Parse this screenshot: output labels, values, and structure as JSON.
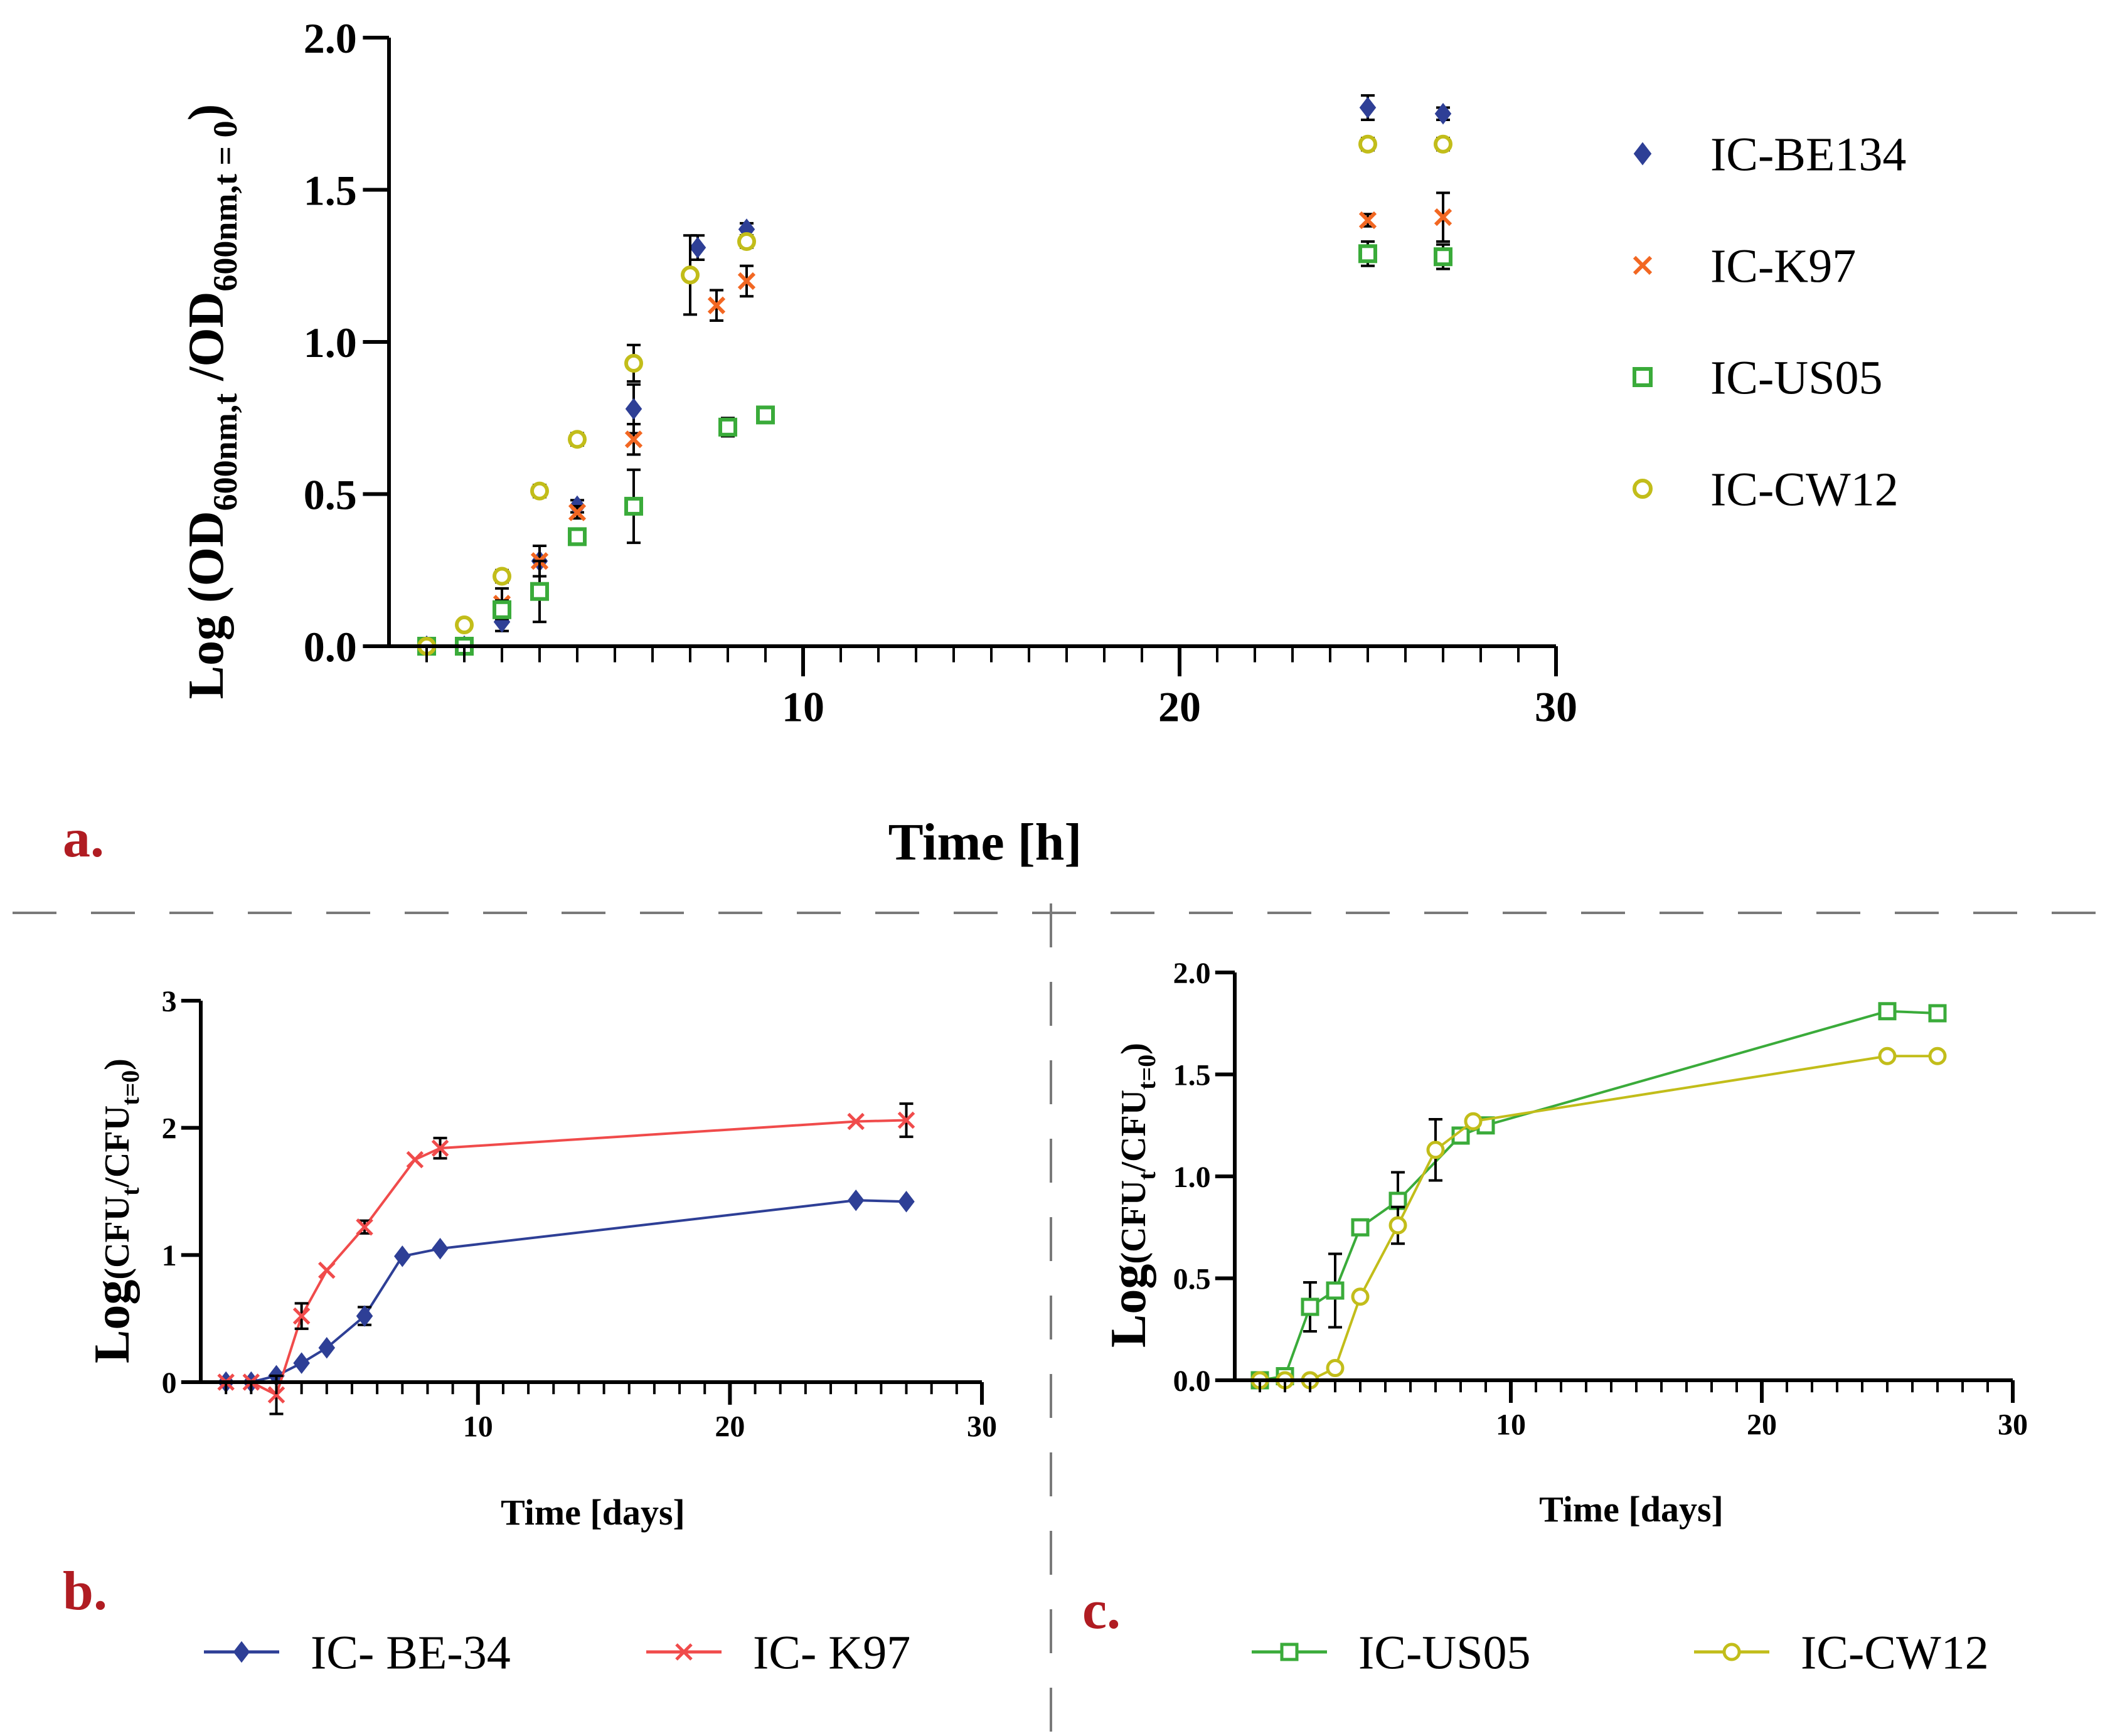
{
  "colors": {
    "blue": "#2e3f96",
    "orange": "#f26722",
    "green": "#3aab3a",
    "yellow": "#c2bd1a",
    "red": "#f04b4b",
    "panel_letter": "#b01c22",
    "axis": "#000000",
    "divider": "#7a7a7a"
  },
  "panel_labels": {
    "a": "a.",
    "b": "b.",
    "c": "c."
  },
  "chart_data": [
    {
      "id": "a",
      "type": "scatter",
      "title": "",
      "xlabel": "Time [h]",
      "ylabel": {
        "prefix": "Log (OD",
        "sub1": "600nm,t",
        "mid": " /OD",
        "sub2": "600nm,t = 0",
        "suffix": ")"
      },
      "xlim": [
        -1,
        30
      ],
      "ylim": [
        0,
        2.0
      ],
      "xticks": [
        10,
        20,
        30
      ],
      "yticks": [
        0.0,
        0.5,
        1.0,
        1.5,
        2.0
      ],
      "ytick_labels": [
        "0.0",
        "0.5",
        "1.0",
        "1.5",
        "2.0"
      ],
      "legend": [
        "IC-BE134",
        "IC-K97",
        "IC-US05",
        "IC-CW12"
      ],
      "series": [
        {
          "name": "IC-BE134",
          "marker": "diamond",
          "color": "blue",
          "x": [
            0,
            1,
            2,
            3,
            4,
            5.5,
            7.2,
            8.5,
            25,
            27
          ],
          "y": [
            0,
            0,
            0.08,
            0.28,
            0.46,
            0.78,
            1.31,
            1.37,
            1.77,
            1.75
          ],
          "err": [
            0,
            0,
            0.03,
            0.05,
            0.02,
            0.08,
            0.04,
            0.02,
            0.04,
            0.02
          ]
        },
        {
          "name": "IC-K97",
          "marker": "x",
          "color": "orange",
          "x": [
            0,
            1,
            2,
            3,
            4,
            5.5,
            7.7,
            8.5,
            25,
            27
          ],
          "y": [
            0,
            0,
            0.14,
            0.28,
            0.44,
            0.68,
            1.12,
            1.2,
            1.4,
            1.41
          ],
          "err": [
            0,
            0,
            0.05,
            0.05,
            0.02,
            0.05,
            0.05,
            0.05,
            0.02,
            0.08
          ]
        },
        {
          "name": "IC-US05",
          "marker": "square",
          "color": "green",
          "x": [
            0,
            1,
            2,
            3,
            4,
            5.5,
            8,
            9,
            25,
            27
          ],
          "y": [
            0,
            0,
            0.12,
            0.18,
            0.36,
            0.46,
            0.72,
            0.76,
            1.29,
            1.28
          ],
          "err": [
            0,
            0,
            0.03,
            0.1,
            0.02,
            0.12,
            0.03,
            0.02,
            0.04,
            0.04
          ]
        },
        {
          "name": "IC-CW12",
          "marker": "circle",
          "color": "yellow",
          "x": [
            0,
            1,
            2,
            3,
            4,
            5.5,
            7,
            8.5,
            25,
            27
          ],
          "y": [
            0,
            0.07,
            0.23,
            0.51,
            0.68,
            0.93,
            1.22,
            1.33,
            1.65,
            1.65
          ],
          "err": [
            0,
            0,
            0.02,
            0.02,
            0.02,
            0.06,
            0.13,
            0.02,
            0.02,
            0.02
          ]
        }
      ]
    },
    {
      "id": "b",
      "type": "line",
      "title": "",
      "xlabel": "Time [days]",
      "ylabel": {
        "prefix": "Log",
        "mid": "(CFU",
        "sub1": "t",
        "mid2": "/CFU",
        "sub2": "t=0",
        "suffix": ")"
      },
      "xlim": [
        -1,
        30
      ],
      "ylim": [
        0,
        3
      ],
      "xticks": [
        10,
        20,
        30
      ],
      "yticks": [
        0,
        1,
        2,
        3
      ],
      "ytick_labels": [
        "0",
        "1",
        "2",
        "3"
      ],
      "legend": [
        "IC- BE-34",
        "IC- K97"
      ],
      "series": [
        {
          "name": "IC- BE-34",
          "marker": "diamond",
          "color": "blue",
          "x": [
            0,
            1,
            2,
            3,
            4,
            5.5,
            7,
            8.5,
            25,
            27
          ],
          "y": [
            0,
            0,
            0.05,
            0.15,
            0.27,
            0.52,
            0.99,
            1.05,
            1.43,
            1.42
          ],
          "err": [
            0,
            0,
            0,
            0,
            0,
            0.07,
            0,
            0,
            0,
            0
          ]
        },
        {
          "name": "IC- K97",
          "marker": "x",
          "color": "red",
          "x": [
            0,
            1,
            2,
            3,
            4,
            5.5,
            7.5,
            8.5,
            25,
            27
          ],
          "y": [
            0,
            0,
            -0.1,
            0.52,
            0.88,
            1.22,
            1.75,
            1.84,
            2.05,
            2.06
          ],
          "err": [
            0,
            0,
            0.15,
            0.1,
            0,
            0.05,
            0,
            0.08,
            0,
            0.13
          ]
        }
      ]
    },
    {
      "id": "c",
      "type": "line",
      "title": "",
      "xlabel": "Time [days]",
      "ylabel": {
        "prefix": "Log",
        "mid": "(CFU",
        "sub1": "t",
        "mid2": "/CFU",
        "sub2": "t=0",
        "suffix": ")"
      },
      "xlim": [
        -1,
        30
      ],
      "ylim": [
        0,
        2.0
      ],
      "xticks": [
        10,
        20,
        30
      ],
      "yticks": [
        0.0,
        0.5,
        1.0,
        1.5,
        2.0
      ],
      "ytick_labels": [
        "0.0",
        "0.5",
        "1.0",
        "1.5",
        "2.0"
      ],
      "legend": [
        "IC-US05",
        "IC-CW12"
      ],
      "series": [
        {
          "name": "IC-US05",
          "marker": "square",
          "color": "green",
          "x": [
            0,
            1,
            2,
            3,
            4,
            5.5,
            8,
            9,
            25,
            27
          ],
          "y": [
            0,
            0.02,
            0.36,
            0.44,
            0.75,
            0.88,
            1.2,
            1.25,
            1.81,
            1.8
          ],
          "err": [
            0,
            0,
            0.12,
            0.18,
            0,
            0.14,
            0,
            0,
            0,
            0
          ]
        },
        {
          "name": "IC-CW12",
          "marker": "circle",
          "color": "yellow",
          "x": [
            0,
            1,
            2,
            3,
            4,
            5.5,
            7,
            8.5,
            25,
            27
          ],
          "y": [
            0,
            0,
            0,
            0.06,
            0.41,
            0.76,
            1.13,
            1.27,
            1.59,
            1.59
          ],
          "err": [
            0,
            0,
            0,
            0,
            0,
            0.09,
            0.15,
            0,
            0,
            0
          ]
        }
      ]
    }
  ]
}
